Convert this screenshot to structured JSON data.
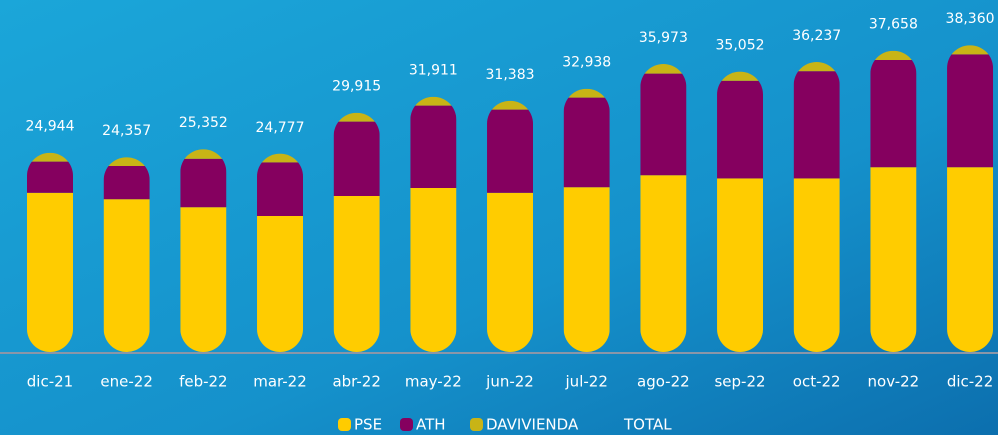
{
  "chart_data": {
    "type": "stacked_bar",
    "categories": [
      "dic-21",
      "ene-22",
      "feb-22",
      "mar-22",
      "abr-22",
      "may-22",
      "jun-22",
      "jul-22",
      "ago-22",
      "sep-22",
      "oct-22",
      "nov-22",
      "dic-22"
    ],
    "series": [
      {
        "name": "PSE",
        "color": "#ffcc00",
        "values": [
          19900,
          19100,
          18100,
          17000,
          19500,
          20500,
          19900,
          20600,
          22100,
          21700,
          21700,
          23100,
          23100
        ]
      },
      {
        "name": "ATH",
        "color": "#85005f",
        "values": [
          3900,
          4150,
          6050,
          6700,
          9300,
          10300,
          10400,
          11200,
          12700,
          12200,
          13400,
          13400,
          14100
        ]
      },
      {
        "name": "DAVIVIENDA",
        "color": "#c8b416",
        "values": [
          1100,
          1100,
          1200,
          1100,
          1100,
          1100,
          1100,
          1100,
          1200,
          1150,
          1150,
          1150,
          1150
        ]
      },
      {
        "name": "TOTAL",
        "color": "none",
        "values": [
          24944,
          24357,
          25352,
          24777,
          29915,
          31911,
          31383,
          32938,
          35973,
          35052,
          36237,
          37658,
          38360
        ],
        "value_labels": [
          "24,944",
          "24,357",
          "25,352",
          "24,777",
          "29,915",
          "31,911",
          "31,383",
          "32,938",
          "35,973",
          "35,052",
          "36,237",
          "37,658",
          "38,360"
        ]
      }
    ],
    "ylim": [
      0,
      44000
    ]
  }
}
